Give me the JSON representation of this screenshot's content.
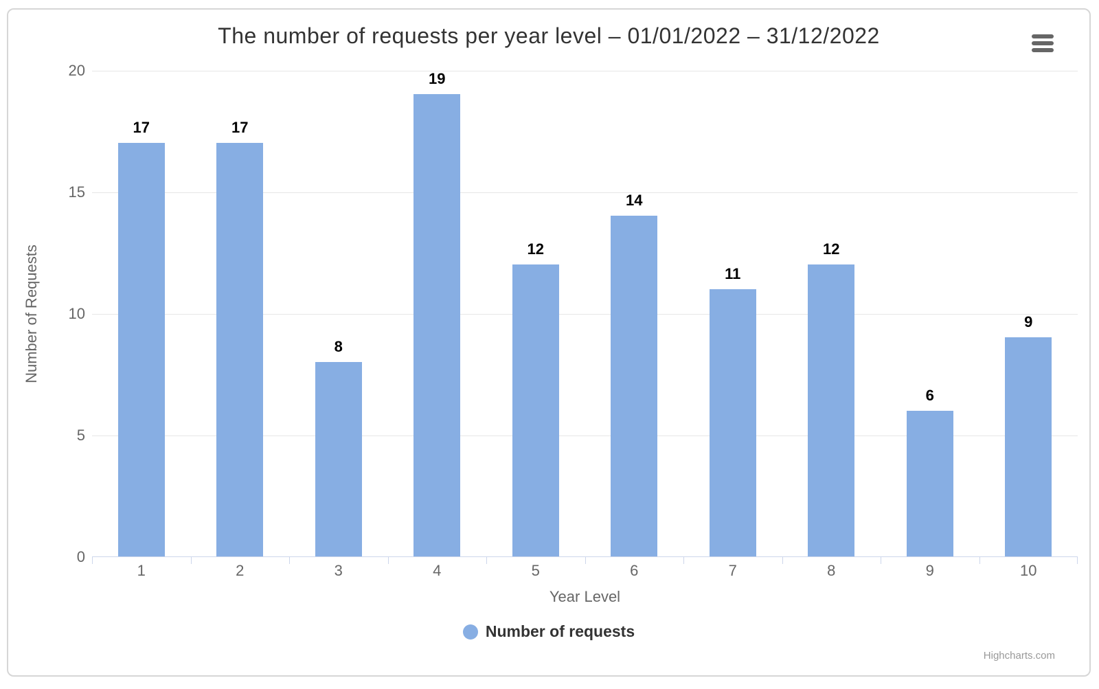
{
  "chart_data": {
    "type": "bar",
    "title": "The number of requests per year level – 01/01/2022 – 31/12/2022",
    "categories": [
      "1",
      "2",
      "3",
      "4",
      "5",
      "6",
      "7",
      "8",
      "9",
      "10"
    ],
    "series": [
      {
        "name": "Number of requests",
        "values": [
          17,
          17,
          8,
          19,
          12,
          14,
          11,
          12,
          6,
          9
        ]
      }
    ],
    "xlabel": "Year Level",
    "ylabel": "Number of Requests",
    "ylim": [
      0,
      20
    ],
    "yticks": [
      0,
      5,
      10,
      15,
      20
    ],
    "grid": true,
    "data_labels": true,
    "legend_position": "bottom-center"
  },
  "colors": {
    "bar": "#87aee3",
    "grid_line": "#e6e6e6",
    "axis_line": "#ccd6eb",
    "axis_label": "#666666",
    "title_text": "#333333",
    "legend_text": "#333333",
    "credits_text": "#999999",
    "menu_icon": "#666666",
    "container_border": "#d6d6d6"
  },
  "export_menu": {
    "icon": "hamburger-icon"
  },
  "credits": {
    "label": "Highcharts.com"
  }
}
